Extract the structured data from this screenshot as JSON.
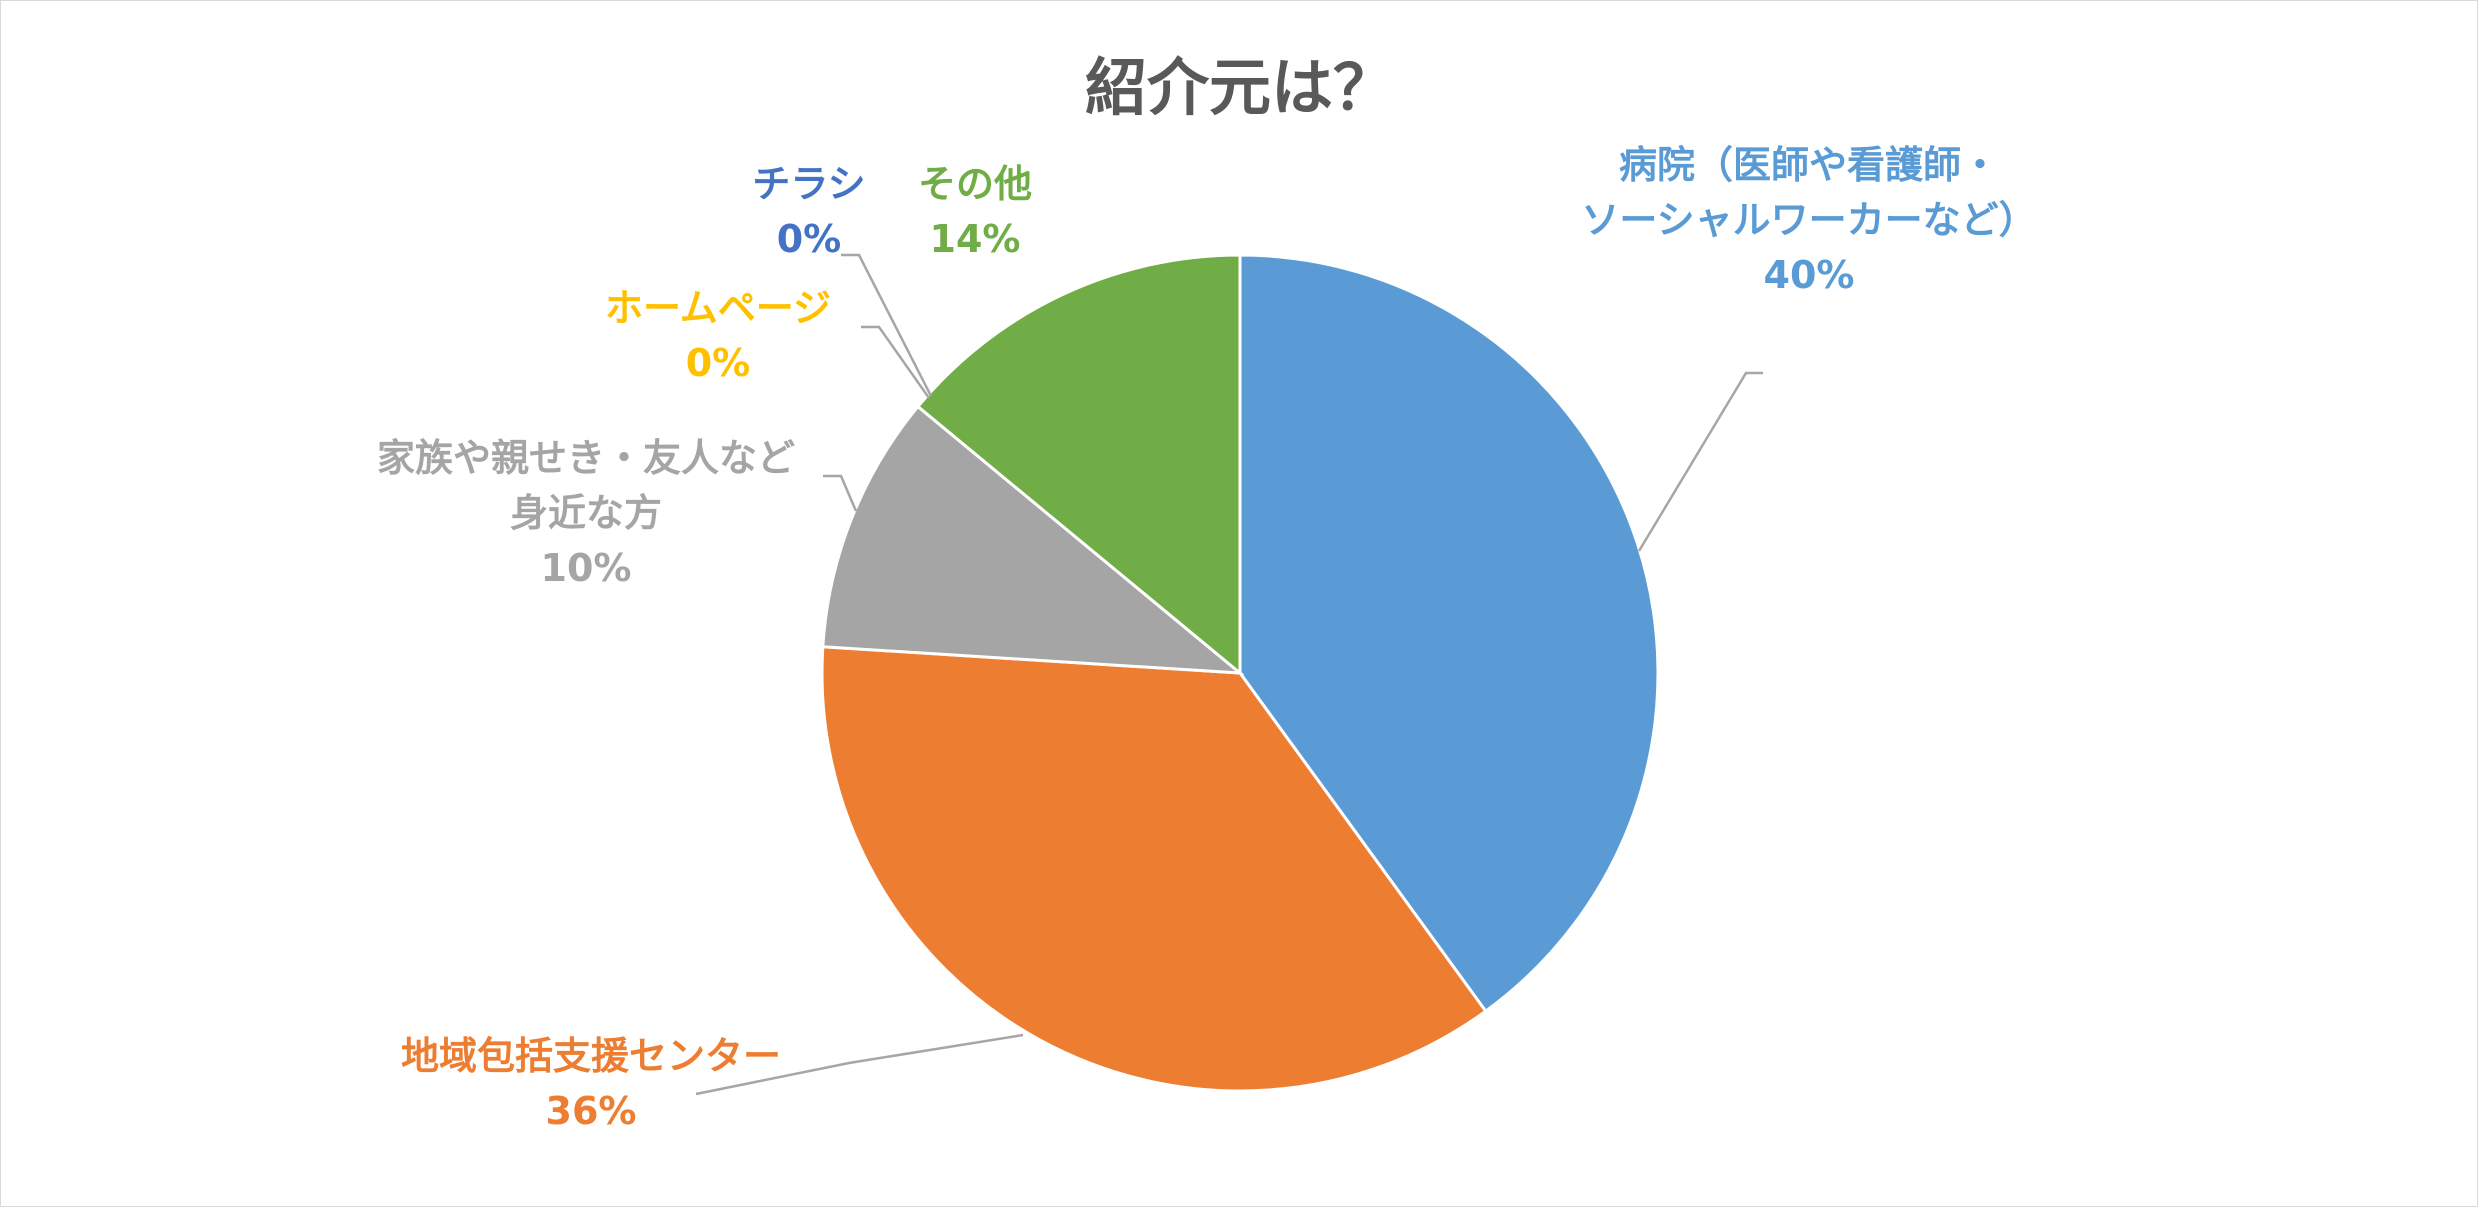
{
  "chart_data": {
    "type": "pie",
    "title": "紹介元は？",
    "start_angle_deg": 0,
    "direction": "clockwise",
    "legend": "none",
    "slices": [
      {
        "name": "病院（医師や看護師・ソーシャルワーカーなど）",
        "value": 40,
        "label": "40%",
        "color": "#5b9bd5",
        "label_lines": [
          "病院（医師や看護師・",
          "ソーシャルワーカーなど）"
        ]
      },
      {
        "name": "地域包括支援センター",
        "value": 36,
        "label": "36%",
        "color": "#ed7d31",
        "label_lines": [
          "地域包括支援センター"
        ]
      },
      {
        "name": "家族や親せき・友人など身近な方",
        "value": 10,
        "label": "10%",
        "color": "#a5a5a5",
        "label_lines": [
          "家族や親せき・友人など",
          "身近な方"
        ]
      },
      {
        "name": "ホームページ",
        "value": 0,
        "label": "0%",
        "color": "#ffc000",
        "label_lines": [
          "ホームページ"
        ]
      },
      {
        "name": "チラシ",
        "value": 0,
        "label": "0%",
        "color": "#4472c4",
        "label_lines": [
          "チラシ"
        ]
      },
      {
        "name": "その他",
        "value": 14,
        "label": "14%",
        "color": "#70ad47",
        "label_lines": [
          "その他"
        ]
      }
    ]
  }
}
